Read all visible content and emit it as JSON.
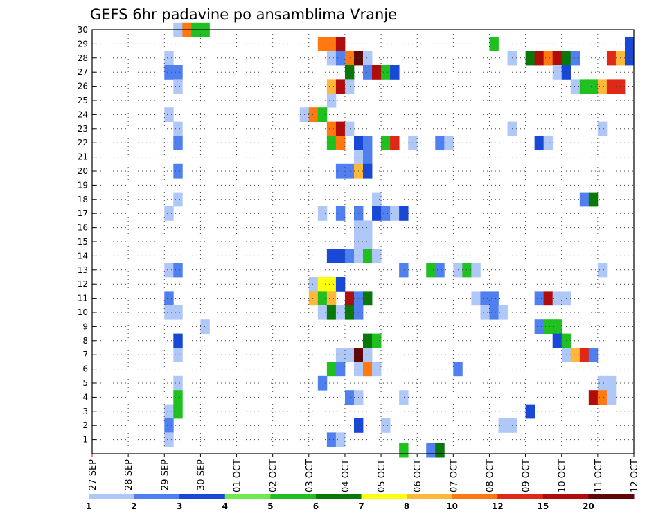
{
  "chart_data": {
    "type": "heatmap",
    "title": "GEFS 6hr padavine po ansamblima Vranje",
    "xlabel": "",
    "ylabel": "",
    "x_start_label": "27 SEP",
    "x_ticks": [
      "27 SEP",
      "28 SEP",
      "29 SEP",
      "30 SEP",
      "01 OCT",
      "02 OCT",
      "03 OCT",
      "04 OCT",
      "05 OCT",
      "06 OCT",
      "07 OCT",
      "08 OCT",
      "09 OCT",
      "10 OCT",
      "11 OCT",
      "12 OCT"
    ],
    "x_step_hours": 6,
    "xlim_steps": [
      0,
      60
    ],
    "y_ticks": [
      1,
      2,
      3,
      4,
      5,
      6,
      7,
      8,
      9,
      10,
      11,
      12,
      13,
      14,
      15,
      16,
      17,
      18,
      19,
      20,
      21,
      22,
      23,
      24,
      25,
      26,
      27,
      28,
      29,
      30
    ],
    "ylim": [
      0,
      30
    ],
    "grid": true,
    "colorbar": {
      "placement": "bottom",
      "tick_labels": [
        "1",
        "2",
        "3",
        "4",
        "5",
        "6",
        "7",
        "8",
        "10",
        "12",
        "15",
        "20"
      ],
      "levels": [
        1,
        2,
        3,
        4,
        5,
        6,
        7,
        8,
        10,
        12,
        15,
        20
      ],
      "colors": [
        "#b0c8f8",
        "#5080f0",
        "#1848d8",
        "#70e850",
        "#20c020",
        "#087808",
        "#ffff10",
        "#ffb838",
        "#ff7810",
        "#e02818",
        "#b00c0c",
        "#600808"
      ]
    },
    "cells": [
      [
        30,
        9.5,
        1
      ],
      [
        30,
        10.5,
        10
      ],
      [
        30,
        11.5,
        5
      ],
      [
        30,
        12.5,
        5
      ],
      [
        29,
        25.5,
        10
      ],
      [
        29,
        26.5,
        10
      ],
      [
        29,
        27.5,
        15
      ],
      [
        29,
        44.5,
        5
      ],
      [
        29,
        59.5,
        3
      ],
      [
        28,
        8.5,
        1
      ],
      [
        28,
        26.5,
        1
      ],
      [
        28,
        27.5,
        2
      ],
      [
        28,
        28.5,
        10
      ],
      [
        28,
        29.5,
        20
      ],
      [
        28,
        30.5,
        1
      ],
      [
        28,
        46.5,
        1
      ],
      [
        28,
        48.5,
        6
      ],
      [
        28,
        49.5,
        15
      ],
      [
        28,
        50.5,
        10
      ],
      [
        28,
        51.5,
        15
      ],
      [
        28,
        52.5,
        6
      ],
      [
        28,
        53.5,
        2
      ],
      [
        28,
        57.5,
        12
      ],
      [
        28,
        58.5,
        8
      ],
      [
        28,
        59.5,
        3
      ],
      [
        27,
        8.5,
        2
      ],
      [
        27,
        9.5,
        2
      ],
      [
        27,
        28.5,
        6
      ],
      [
        27,
        30.5,
        2
      ],
      [
        27,
        31.5,
        15
      ],
      [
        27,
        32.5,
        5
      ],
      [
        27,
        33.5,
        3
      ],
      [
        27,
        51.5,
        1
      ],
      [
        27,
        52.5,
        3
      ],
      [
        26,
        9.5,
        1
      ],
      [
        26,
        26.5,
        8
      ],
      [
        26,
        27.5,
        15
      ],
      [
        26,
        28.5,
        1
      ],
      [
        26,
        53.5,
        1
      ],
      [
        26,
        54.5,
        5
      ],
      [
        26,
        55.5,
        5
      ],
      [
        26,
        56.5,
        8
      ],
      [
        26,
        57.5,
        12
      ],
      [
        26,
        58.5,
        12
      ],
      [
        25,
        26.5,
        1
      ],
      [
        24,
        8.5,
        1
      ],
      [
        24,
        23.5,
        1
      ],
      [
        24,
        24.5,
        10
      ],
      [
        24,
        25.5,
        5
      ],
      [
        23,
        9.5,
        1
      ],
      [
        23,
        26.5,
        10
      ],
      [
        23,
        27.5,
        15
      ],
      [
        23,
        28.5,
        1
      ],
      [
        23,
        46.5,
        1
      ],
      [
        23,
        56.5,
        1
      ],
      [
        22,
        9.5,
        2
      ],
      [
        22,
        26.5,
        5
      ],
      [
        22,
        27.5,
        10
      ],
      [
        22,
        29.5,
        3
      ],
      [
        22,
        30.5,
        2
      ],
      [
        22,
        32.5,
        5
      ],
      [
        22,
        33.5,
        12
      ],
      [
        22,
        35.5,
        1
      ],
      [
        22,
        38.5,
        2
      ],
      [
        22,
        39.5,
        1
      ],
      [
        22,
        49.5,
        3
      ],
      [
        22,
        50.5,
        1
      ],
      [
        21,
        29.5,
        1
      ],
      [
        21,
        30.5,
        2
      ],
      [
        20,
        9.5,
        2
      ],
      [
        20,
        27.5,
        2
      ],
      [
        20,
        28.5,
        2
      ],
      [
        20,
        29.5,
        8
      ],
      [
        20,
        30.5,
        3
      ],
      [
        18,
        9.5,
        1
      ],
      [
        18,
        31.5,
        1
      ],
      [
        18,
        54.5,
        2
      ],
      [
        18,
        55.5,
        6
      ],
      [
        17,
        8.5,
        1
      ],
      [
        17,
        25.5,
        1
      ],
      [
        17,
        27.5,
        2
      ],
      [
        17,
        29.5,
        2
      ],
      [
        17,
        31.5,
        3
      ],
      [
        17,
        32.5,
        2
      ],
      [
        17,
        33.5,
        1
      ],
      [
        17,
        34.5,
        3
      ],
      [
        16,
        29.5,
        1
      ],
      [
        16,
        30.5,
        1
      ],
      [
        15,
        29.5,
        1
      ],
      [
        15,
        30.5,
        1
      ],
      [
        14,
        26.5,
        3
      ],
      [
        14,
        27.5,
        3
      ],
      [
        14,
        28.5,
        2
      ],
      [
        14,
        29.5,
        1
      ],
      [
        14,
        30.5,
        5
      ],
      [
        14,
        31.5,
        1
      ],
      [
        13,
        8.5,
        1
      ],
      [
        13,
        9.5,
        2
      ],
      [
        13,
        34.5,
        2
      ],
      [
        13,
        37.5,
        5
      ],
      [
        13,
        38.5,
        2
      ],
      [
        13,
        40.5,
        1
      ],
      [
        13,
        41.5,
        5
      ],
      [
        13,
        42.5,
        1
      ],
      [
        13,
        56.5,
        1
      ],
      [
        12,
        24.5,
        1
      ],
      [
        12,
        25.5,
        7
      ],
      [
        12,
        26.5,
        7
      ],
      [
        12,
        27.5,
        3
      ],
      [
        11,
        8.5,
        2
      ],
      [
        11,
        24.5,
        8
      ],
      [
        11,
        25.5,
        5
      ],
      [
        11,
        26.5,
        8
      ],
      [
        11,
        28.5,
        15
      ],
      [
        11,
        29.5,
        2
      ],
      [
        11,
        30.5,
        6
      ],
      [
        11,
        42.5,
        1
      ],
      [
        11,
        43.5,
        2
      ],
      [
        11,
        44.5,
        2
      ],
      [
        11,
        49.5,
        2
      ],
      [
        11,
        50.5,
        15
      ],
      [
        11,
        51.5,
        1
      ],
      [
        11,
        52.5,
        1
      ],
      [
        10,
        8.5,
        1
      ],
      [
        10,
        9.5,
        1
      ],
      [
        10,
        25.5,
        1
      ],
      [
        10,
        26.5,
        6
      ],
      [
        10,
        27.5,
        1
      ],
      [
        10,
        28.5,
        6
      ],
      [
        10,
        29.5,
        2
      ],
      [
        10,
        43.5,
        1
      ],
      [
        10,
        44.5,
        2
      ],
      [
        10,
        45.5,
        1
      ],
      [
        9,
        12.5,
        1
      ],
      [
        9,
        49.5,
        2
      ],
      [
        9,
        50.5,
        5
      ],
      [
        9,
        51.5,
        5
      ],
      [
        8,
        9.5,
        3
      ],
      [
        8,
        30.5,
        6
      ],
      [
        8,
        31.5,
        5
      ],
      [
        8,
        51.5,
        3
      ],
      [
        8,
        52.5,
        5
      ],
      [
        7,
        9.5,
        1
      ],
      [
        7,
        27.5,
        1
      ],
      [
        7,
        28.5,
        1
      ],
      [
        7,
        29.5,
        20
      ],
      [
        7,
        30.5,
        1
      ],
      [
        7,
        52.5,
        1
      ],
      [
        7,
        53.5,
        8
      ],
      [
        7,
        54.5,
        12
      ],
      [
        7,
        55.5,
        2
      ],
      [
        6,
        26.5,
        5
      ],
      [
        6,
        27.5,
        2
      ],
      [
        6,
        29.5,
        1
      ],
      [
        6,
        30.5,
        10
      ],
      [
        6,
        31.5,
        1
      ],
      [
        6,
        40.5,
        2
      ],
      [
        5,
        9.5,
        1
      ],
      [
        5,
        25.5,
        2
      ],
      [
        5,
        56.5,
        1
      ],
      [
        5,
        57.5,
        1
      ],
      [
        4,
        9.5,
        5
      ],
      [
        4,
        28.5,
        2
      ],
      [
        4,
        29.5,
        1
      ],
      [
        4,
        34.5,
        1
      ],
      [
        4,
        55.5,
        15
      ],
      [
        4,
        56.5,
        10
      ],
      [
        4,
        57.5,
        1
      ],
      [
        3,
        8.5,
        1
      ],
      [
        3,
        9.5,
        5
      ],
      [
        3,
        48.5,
        3
      ],
      [
        2,
        8.5,
        2
      ],
      [
        2,
        29.5,
        3
      ],
      [
        2,
        32.5,
        1
      ],
      [
        2,
        45.5,
        1
      ],
      [
        2,
        46.5,
        1
      ],
      [
        1,
        8.5,
        1
      ],
      [
        1,
        26.5,
        2
      ],
      [
        1,
        27.5,
        1
      ],
      [
        0.25,
        34.5,
        5
      ],
      [
        0.25,
        37.5,
        2
      ],
      [
        0.25,
        38.5,
        6
      ]
    ]
  }
}
